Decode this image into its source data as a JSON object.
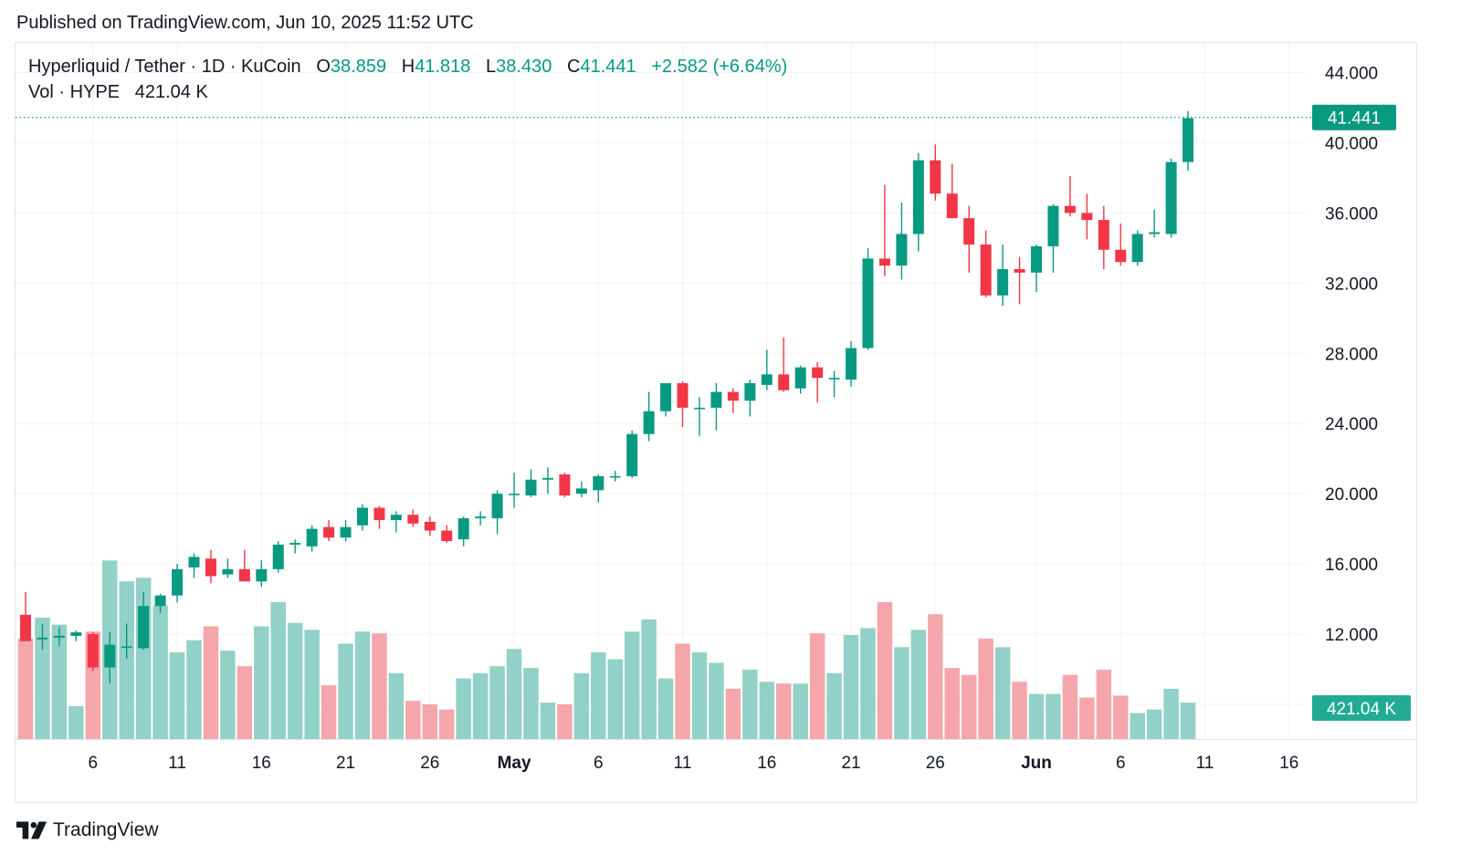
{
  "header": {
    "published": "Published on TradingView.com, Jun 10, 2025 11:52 UTC"
  },
  "legend": {
    "symbol": "Hyperliquid / Tether · 1D · KuCoin",
    "open_label": "O",
    "open": "38.859",
    "high_label": "H",
    "high": "41.818",
    "low_label": "L",
    "low": "38.430",
    "close_label": "C",
    "close": "41.441",
    "change": "+2.582 (+6.64%)",
    "vol_label": "Vol · HYPE",
    "vol_value": "421.04 K"
  },
  "footer": {
    "brand": "TradingView"
  },
  "colors": {
    "up": "#089981",
    "down": "#f23645",
    "up_vol": "#92d1c7",
    "down_vol": "#f5a6ab",
    "grid": "#f0f3fa"
  },
  "chart_data": {
    "type": "candlestick",
    "price_axis": {
      "ticks": [
        "44.000",
        "40.000",
        "36.000",
        "32.000",
        "28.000",
        "24.000",
        "20.000",
        "16.000",
        "12.000"
      ],
      "range": [
        11.2,
        45.5
      ]
    },
    "last_price_label": "41.441",
    "last_volume_label": "421.04 K",
    "x_ticks": [
      {
        "label": "6",
        "index": 4
      },
      {
        "label": "11",
        "index": 9
      },
      {
        "label": "16",
        "index": 14
      },
      {
        "label": "21",
        "index": 19
      },
      {
        "label": "26",
        "index": 24
      },
      {
        "label": "May",
        "index": 29,
        "bold": true
      },
      {
        "label": "6",
        "index": 34
      },
      {
        "label": "11",
        "index": 39
      },
      {
        "label": "16",
        "index": 44
      },
      {
        "label": "21",
        "index": 49
      },
      {
        "label": "26",
        "index": 54
      },
      {
        "label": "Jun",
        "index": 60,
        "bold": true
      },
      {
        "label": "6",
        "index": 65
      },
      {
        "label": "11",
        "index": 70
      },
      {
        "label": "16",
        "index": 75
      }
    ],
    "candles": [
      {
        "o": 13.1,
        "h": 14.4,
        "l": 11.6,
        "c": 11.6,
        "v": 0.58
      },
      {
        "o": 11.7,
        "h": 12.6,
        "l": 11.1,
        "c": 11.8,
        "v": 0.7
      },
      {
        "o": 11.8,
        "h": 12.4,
        "l": 11.3,
        "c": 11.9,
        "v": 0.66
      },
      {
        "o": 11.9,
        "h": 12.2,
        "l": 11.6,
        "c": 12.1,
        "v": 0.19
      },
      {
        "o": 12.0,
        "h": 12.1,
        "l": 9.9,
        "c": 10.1,
        "v": 0.62
      },
      {
        "o": 10.1,
        "h": 12.1,
        "l": 9.2,
        "c": 11.4,
        "v": 1.03
      },
      {
        "o": 11.3,
        "h": 12.6,
        "l": 10.6,
        "c": 11.3,
        "v": 0.91
      },
      {
        "o": 11.2,
        "h": 14.4,
        "l": 11.1,
        "c": 13.6,
        "v": 0.93
      },
      {
        "o": 13.6,
        "h": 14.3,
        "l": 13.2,
        "c": 14.2,
        "v": 0.77
      },
      {
        "o": 14.2,
        "h": 16.0,
        "l": 13.8,
        "c": 15.7,
        "v": 0.5
      },
      {
        "o": 15.8,
        "h": 16.6,
        "l": 15.2,
        "c": 16.4,
        "v": 0.57
      },
      {
        "o": 16.3,
        "h": 16.8,
        "l": 14.9,
        "c": 15.3,
        "v": 0.65
      },
      {
        "o": 15.4,
        "h": 16.3,
        "l": 15.2,
        "c": 15.7,
        "v": 0.51
      },
      {
        "o": 15.7,
        "h": 16.8,
        "l": 15.0,
        "c": 15.0,
        "v": 0.42
      },
      {
        "o": 15.0,
        "h": 16.2,
        "l": 14.7,
        "c": 15.7,
        "v": 0.65
      },
      {
        "o": 15.7,
        "h": 17.3,
        "l": 15.5,
        "c": 17.1,
        "v": 0.79
      },
      {
        "o": 17.1,
        "h": 17.4,
        "l": 16.6,
        "c": 17.2,
        "v": 0.67
      },
      {
        "o": 17.0,
        "h": 18.2,
        "l": 16.7,
        "c": 18.0,
        "v": 0.63
      },
      {
        "o": 18.1,
        "h": 18.5,
        "l": 17.3,
        "c": 17.5,
        "v": 0.31
      },
      {
        "o": 17.5,
        "h": 18.5,
        "l": 17.3,
        "c": 18.1,
        "v": 0.55
      },
      {
        "o": 18.2,
        "h": 19.4,
        "l": 17.9,
        "c": 19.2,
        "v": 0.62
      },
      {
        "o": 19.2,
        "h": 19.3,
        "l": 18.0,
        "c": 18.5,
        "v": 0.61
      },
      {
        "o": 18.5,
        "h": 19.0,
        "l": 17.8,
        "c": 18.8,
        "v": 0.38
      },
      {
        "o": 18.8,
        "h": 19.1,
        "l": 18.1,
        "c": 18.3,
        "v": 0.22
      },
      {
        "o": 18.4,
        "h": 18.7,
        "l": 17.6,
        "c": 17.9,
        "v": 0.2
      },
      {
        "o": 17.9,
        "h": 18.2,
        "l": 17.2,
        "c": 17.3,
        "v": 0.17
      },
      {
        "o": 17.4,
        "h": 18.7,
        "l": 17.0,
        "c": 18.6,
        "v": 0.35
      },
      {
        "o": 18.6,
        "h": 19.0,
        "l": 18.2,
        "c": 18.7,
        "v": 0.38
      },
      {
        "o": 18.6,
        "h": 20.2,
        "l": 17.7,
        "c": 20.0,
        "v": 0.42
      },
      {
        "o": 20.0,
        "h": 21.2,
        "l": 19.2,
        "c": 20.0,
        "v": 0.52
      },
      {
        "o": 19.9,
        "h": 21.4,
        "l": 19.8,
        "c": 20.8,
        "v": 0.41
      },
      {
        "o": 20.8,
        "h": 21.5,
        "l": 20.0,
        "c": 20.9,
        "v": 0.21
      },
      {
        "o": 21.1,
        "h": 21.2,
        "l": 19.8,
        "c": 19.9,
        "v": 0.2
      },
      {
        "o": 20.0,
        "h": 20.7,
        "l": 19.8,
        "c": 20.3,
        "v": 0.38
      },
      {
        "o": 20.2,
        "h": 21.1,
        "l": 19.5,
        "c": 21.0,
        "v": 0.5
      },
      {
        "o": 21.0,
        "h": 21.3,
        "l": 20.7,
        "c": 21.0,
        "v": 0.46
      },
      {
        "o": 21.0,
        "h": 23.6,
        "l": 20.9,
        "c": 23.4,
        "v": 0.62
      },
      {
        "o": 23.4,
        "h": 25.8,
        "l": 23.0,
        "c": 24.7,
        "v": 0.69
      },
      {
        "o": 24.7,
        "h": 26.3,
        "l": 24.4,
        "c": 26.3,
        "v": 0.35
      },
      {
        "o": 26.3,
        "h": 26.4,
        "l": 23.8,
        "c": 24.9,
        "v": 0.55
      },
      {
        "o": 24.9,
        "h": 25.5,
        "l": 23.3,
        "c": 24.9,
        "v": 0.5
      },
      {
        "o": 24.9,
        "h": 26.3,
        "l": 23.6,
        "c": 25.8,
        "v": 0.44
      },
      {
        "o": 25.8,
        "h": 26.0,
        "l": 24.6,
        "c": 25.3,
        "v": 0.29
      },
      {
        "o": 25.3,
        "h": 26.5,
        "l": 24.4,
        "c": 26.3,
        "v": 0.4
      },
      {
        "o": 26.2,
        "h": 28.2,
        "l": 25.9,
        "c": 26.8,
        "v": 0.33
      },
      {
        "o": 26.8,
        "h": 28.9,
        "l": 25.8,
        "c": 25.9,
        "v": 0.32
      },
      {
        "o": 26.0,
        "h": 27.3,
        "l": 25.7,
        "c": 27.2,
        "v": 0.32
      },
      {
        "o": 27.2,
        "h": 27.5,
        "l": 25.2,
        "c": 26.6,
        "v": 0.61
      },
      {
        "o": 26.6,
        "h": 27.0,
        "l": 25.5,
        "c": 26.6,
        "v": 0.38
      },
      {
        "o": 26.5,
        "h": 28.7,
        "l": 26.1,
        "c": 28.3,
        "v": 0.6
      },
      {
        "o": 28.3,
        "h": 34.0,
        "l": 28.2,
        "c": 33.4,
        "v": 0.64
      },
      {
        "o": 33.4,
        "h": 37.6,
        "l": 32.4,
        "c": 33.0,
        "v": 0.79
      },
      {
        "o": 33.0,
        "h": 36.6,
        "l": 32.2,
        "c": 34.8,
        "v": 0.53
      },
      {
        "o": 34.8,
        "h": 39.4,
        "l": 33.8,
        "c": 39.0,
        "v": 0.63
      },
      {
        "o": 39.0,
        "h": 39.9,
        "l": 36.7,
        "c": 37.1,
        "v": 0.72
      },
      {
        "o": 37.1,
        "h": 38.8,
        "l": 35.7,
        "c": 35.7,
        "v": 0.41
      },
      {
        "o": 35.7,
        "h": 36.4,
        "l": 32.6,
        "c": 34.2,
        "v": 0.37
      },
      {
        "o": 34.2,
        "h": 35.0,
        "l": 31.2,
        "c": 31.3,
        "v": 0.58
      },
      {
        "o": 31.3,
        "h": 34.2,
        "l": 30.7,
        "c": 32.8,
        "v": 0.53
      },
      {
        "o": 32.8,
        "h": 33.5,
        "l": 30.8,
        "c": 32.6,
        "v": 0.33
      },
      {
        "o": 32.6,
        "h": 34.2,
        "l": 31.5,
        "c": 34.1,
        "v": 0.26
      },
      {
        "o": 34.1,
        "h": 36.5,
        "l": 32.6,
        "c": 36.4,
        "v": 0.26
      },
      {
        "o": 36.4,
        "h": 38.1,
        "l": 35.8,
        "c": 36.0,
        "v": 0.37
      },
      {
        "o": 36.0,
        "h": 37.1,
        "l": 34.5,
        "c": 35.6,
        "v": 0.24
      },
      {
        "o": 35.6,
        "h": 36.4,
        "l": 32.8,
        "c": 33.9,
        "v": 0.4
      },
      {
        "o": 33.9,
        "h": 35.4,
        "l": 33.0,
        "c": 33.2,
        "v": 0.25
      },
      {
        "o": 33.2,
        "h": 35.0,
        "l": 33.0,
        "c": 34.8,
        "v": 0.15
      },
      {
        "o": 34.8,
        "h": 36.2,
        "l": 34.6,
        "c": 34.9,
        "v": 0.17
      },
      {
        "o": 34.8,
        "h": 39.1,
        "l": 34.6,
        "c": 38.9,
        "v": 0.29
      },
      {
        "o": 38.9,
        "h": 41.8,
        "l": 38.4,
        "c": 41.4,
        "v": 0.21
      }
    ]
  }
}
